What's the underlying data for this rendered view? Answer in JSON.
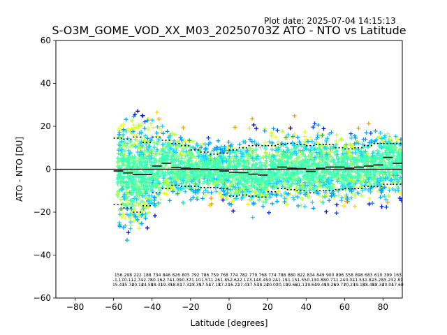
{
  "header": {
    "plot_date": "Plot date: 2025-07-04 14:15:13",
    "title": "S-O3M_GOME_VOD_XX_M03_20250703Z ATO - NTO vs Latitude"
  },
  "colors": {
    "zero_line": "#000000",
    "scatter_palette": [
      "#7fff7f",
      "#3cffb8",
      "#1fd0ff",
      "#00a4ff",
      "#0047ff",
      "#0000d8",
      "#b8ff3c",
      "#e6ff1a",
      "#ffd500",
      "#ff9d00",
      "#ff5e00"
    ]
  },
  "chart_data": {
    "type": "scatter",
    "title": "S-O3M_GOME_VOD_XX_M03_20250703Z ATO - NTO vs Latitude",
    "xlabel": "Latitude [degrees]",
    "ylabel": "ATO - NTO [DU]",
    "xlim": [
      -90,
      90
    ],
    "ylim": [
      -60,
      60
    ],
    "xticks": [
      -80,
      -60,
      -40,
      -20,
      0,
      20,
      40,
      60,
      80
    ],
    "yticks": [
      -60,
      -40,
      -20,
      0,
      20,
      40,
      60
    ],
    "grid": false,
    "legend": "none",
    "zero_line_y": 0,
    "bins": {
      "x": [
        -57.5,
        -52.5,
        -47.5,
        -42.5,
        -37.5,
        -32.5,
        -27.5,
        -22.5,
        -17.5,
        -12.5,
        -7.5,
        -2.5,
        2.5,
        7.5,
        12.5,
        17.5,
        22.5,
        27.5,
        32.5,
        37.5,
        42.5,
        47.5,
        52.5,
        57.5,
        62.5,
        67.5,
        72.5,
        77.5,
        82.5,
        87.5
      ],
      "mean": [
        -0.8,
        -1.7,
        -2.5,
        -2.5,
        1.5,
        2.8,
        0.9,
        0.5,
        0.2,
        0.0,
        -0.2,
        -0.8,
        -1.4,
        -1.6,
        -2.3,
        -2.7,
        0.0,
        1.0,
        0.5,
        0.3,
        -1.0,
        0.4,
        1.0,
        1.0,
        0.5,
        1.0,
        1.5,
        2.0,
        5.5,
        2.8
      ],
      "upper": [
        14.5,
        14.0,
        15.0,
        12.5,
        15.0,
        13.5,
        12.0,
        11.0,
        9.0,
        8.0,
        7.0,
        7.5,
        9.0,
        10.0,
        11.0,
        11.0,
        11.0,
        11.5,
        12.0,
        11.5,
        11.0,
        11.5,
        11.5,
        10.0,
        9.5,
        10.0,
        11.0,
        12.0,
        12.0,
        12.0
      ],
      "lower": [
        -16.5,
        -18.0,
        -20.0,
        -17.0,
        -11.0,
        -9.0,
        -7.5,
        -8.0,
        -8.0,
        -8.5,
        -8.5,
        -9.0,
        -12.5,
        -12.0,
        -12.5,
        -13.0,
        -10.5,
        -9.0,
        -9.5,
        -10.0,
        -11.0,
        -10.0,
        -10.0,
        -9.5,
        -9.0,
        -9.0,
        -8.0,
        -8.0,
        -7.0,
        -7.0
      ]
    },
    "bin_stats": [
      [
        "156",
        "-1.17",
        "15.43"
      ],
      [
        "298",
        "-0.11",
        "15.74"
      ],
      [
        "222",
        "-2.74",
        "20.14"
      ],
      [
        "188",
        "-2.78",
        "24.58"
      ],
      [
        "734",
        "-0.16",
        "18.31"
      ],
      [
        "846",
        "-2.74",
        "19.35"
      ],
      [
        "826",
        "-1.09",
        "18.81"
      ],
      [
        "805",
        "-0.37",
        "17.32"
      ],
      [
        "792",
        "-1.10",
        "18.39"
      ],
      [
        "786",
        "-1.57",
        "17.54"
      ],
      [
        "759",
        "-1.26",
        "17.18"
      ],
      [
        "768",
        "-1.85",
        "17.21"
      ],
      [
        "774",
        "-2.62",
        "16.22"
      ],
      [
        "782",
        "-2.17",
        "17.43"
      ],
      [
        "779",
        "-3.14",
        "17.53"
      ],
      [
        "768",
        "-0.45",
        "18.24"
      ],
      [
        "774",
        "-0.24",
        "20.01"
      ],
      [
        "788",
        "-1.19",
        "20.10"
      ],
      [
        "880",
        "-1.15",
        "19.66"
      ],
      [
        "822",
        "-1.55",
        "21.17"
      ],
      [
        "834",
        "-0.13",
        "19.64"
      ],
      [
        "849",
        "-0.88",
        "19.49"
      ],
      [
        "900",
        "-0.77",
        "19.26"
      ],
      [
        "896",
        "-1.24",
        "19.71"
      ],
      [
        "558",
        "-0.02",
        "20.23"
      ],
      [
        "898",
        "-1.53",
        "19.18"
      ],
      [
        "683",
        "-1.82",
        "18.48"
      ],
      [
        "610",
        "-5.28",
        "18.34"
      ],
      [
        "399",
        "-5.23",
        "20.04"
      ],
      [
        "163",
        "-2.81",
        "17.60"
      ]
    ]
  }
}
